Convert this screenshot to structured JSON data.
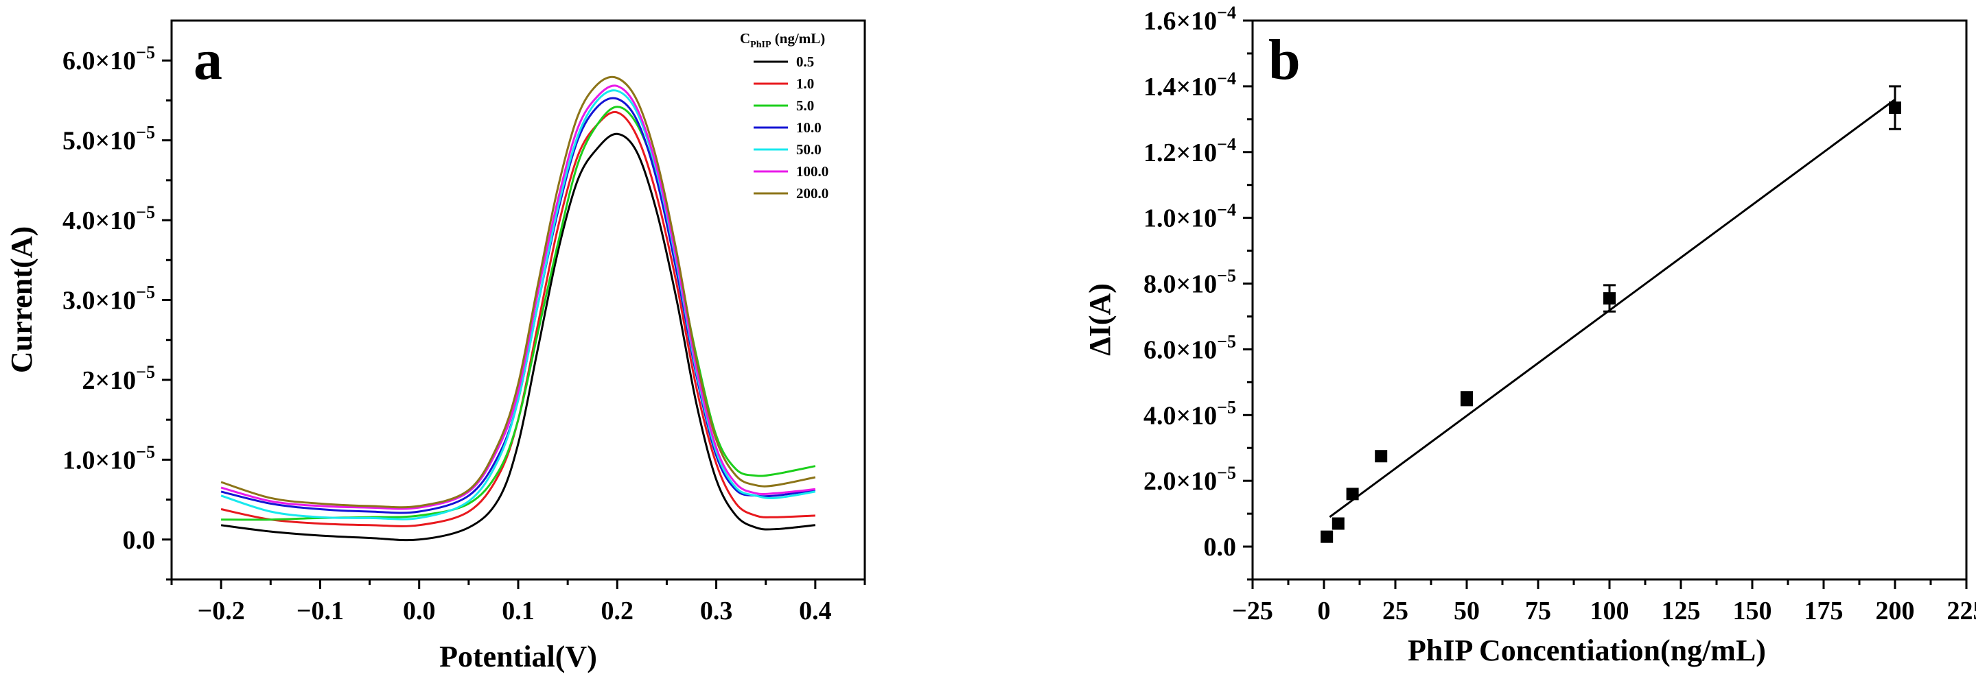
{
  "chart_data": [
    {
      "type": "line",
      "panel_label": "a",
      "xlabel": "Potential(V)",
      "ylabel": "Current(A)",
      "xlim": [
        -0.25,
        0.45
      ],
      "ylim": [
        -5e-06,
        6.5e-05
      ],
      "x_ticks": [
        -0.2,
        -0.1,
        0.0,
        0.1,
        0.2,
        0.3,
        0.4
      ],
      "x_tick_labels": [
        "−0.2",
        "−0.1",
        "0.0",
        "0.1",
        "0.2",
        "0.3",
        "0.4"
      ],
      "y_ticks": [
        0,
        1e-05,
        2e-05,
        3e-05,
        4e-05,
        5e-05,
        6e-05
      ],
      "y_tick_labels": [
        "0.0",
        "1.0×10",
        "2×10",
        "3.0×10",
        "4.0×10",
        "5.0×10",
        "6.0×10"
      ],
      "y_tick_exponents": [
        "",
        "−5",
        "−5",
        "−5",
        "−5",
        "−5",
        "−5"
      ],
      "legend": {
        "title_main": "C",
        "title_sub": "PhIP",
        "title_unit": " (ng/mL)",
        "placement": "top-right"
      },
      "x": [
        -0.2,
        -0.15,
        -0.1,
        -0.05,
        0.0,
        0.05,
        0.08,
        0.1,
        0.12,
        0.14,
        0.16,
        0.18,
        0.2,
        0.22,
        0.24,
        0.26,
        0.28,
        0.3,
        0.32,
        0.34,
        0.36,
        0.4
      ],
      "series": [
        {
          "name": "0.5",
          "color": "#000000",
          "values": [
            1.8e-06,
            1e-06,
            5e-07,
            2e-07,
            0.0,
            1.5e-06,
            5e-06,
            1.2e-05,
            2.4e-05,
            3.6e-05,
            4.5e-05,
            4.9e-05,
            5.08e-05,
            4.85e-05,
            4.1e-05,
            3e-05,
            1.7e-05,
            7.5e-06,
            3e-06,
            1.5e-06,
            1.3e-06,
            1.8e-06
          ]
        },
        {
          "name": "1.0",
          "color": "#e8191e",
          "values": [
            3.8e-06,
            2.5e-06,
            2e-06,
            1.8e-06,
            1.8e-06,
            3.5e-06,
            8e-06,
            1.5e-05,
            2.7e-05,
            3.9e-05,
            4.8e-05,
            5.2e-05,
            5.35e-05,
            5.05e-05,
            4.3e-05,
            3.2e-05,
            1.9e-05,
            9.5e-06,
            4.5e-06,
            3e-06,
            2.8e-06,
            3e-06
          ]
        },
        {
          "name": "5.0",
          "color": "#1ccf1c",
          "values": [
            2.5e-06,
            2.5e-06,
            2.7e-06,
            2.8e-06,
            3e-06,
            4.5e-06,
            8.5e-06,
            1.5e-05,
            2.6e-05,
            3.7e-05,
            4.7e-05,
            5.2e-05,
            5.42e-05,
            5.2e-05,
            4.55e-05,
            3.5e-05,
            2.3e-05,
            1.3e-05,
            8.8e-06,
            8e-06,
            8.2e-06,
            9.2e-06
          ]
        },
        {
          "name": "10.0",
          "color": "#1414d4",
          "values": [
            6e-06,
            4.5e-06,
            3.8e-06,
            3.5e-06,
            3.5e-06,
            5.5e-06,
            1.05e-05,
            1.75e-05,
            2.95e-05,
            4.1e-05,
            5e-05,
            5.42e-05,
            5.52e-05,
            5.25e-05,
            4.5e-05,
            3.35e-05,
            2.05e-05,
            1.05e-05,
            6.2e-06,
            5.5e-06,
            5.5e-06,
            6.2e-06
          ]
        },
        {
          "name": "50.0",
          "color": "#18e8ee",
          "values": [
            5.5e-06,
            3.5e-06,
            2.8e-06,
            2.7e-06,
            2.7e-06,
            4.8e-06,
            1e-05,
            1.75e-05,
            2.95e-05,
            4.15e-05,
            5.05e-05,
            5.5e-05,
            5.62e-05,
            5.35e-05,
            4.6e-05,
            3.45e-05,
            2.1e-05,
            1.1e-05,
            6.5e-06,
            5.5e-06,
            5.2e-06,
            6e-06
          ]
        },
        {
          "name": "100.0",
          "color": "#e81ae8",
          "values": [
            6.5e-06,
            4.8e-06,
            4.2e-06,
            4e-06,
            4e-06,
            6e-06,
            1.15e-05,
            1.85e-05,
            3.1e-05,
            4.25e-05,
            5.15e-05,
            5.55e-05,
            5.68e-05,
            5.4e-05,
            4.65e-05,
            3.5e-05,
            2.15e-05,
            1.15e-05,
            7e-06,
            5.8e-06,
            5.8e-06,
            6.3e-06
          ]
        },
        {
          "name": "200.0",
          "color": "#8c7418",
          "values": [
            7.2e-06,
            5.2e-06,
            4.5e-06,
            4.2e-06,
            4.2e-06,
            6.2e-06,
            1.2e-05,
            1.95e-05,
            3.2e-05,
            4.4e-05,
            5.3e-05,
            5.7e-05,
            5.78e-05,
            5.5e-05,
            4.75e-05,
            3.6e-05,
            2.25e-05,
            1.25e-05,
            8e-06,
            6.8e-06,
            6.8e-06,
            7.8e-06
          ]
        }
      ]
    },
    {
      "type": "scatter",
      "panel_label": "b",
      "xlabel": "PhIP Concentiation(ng/mL)",
      "ylabel": "ΔI(A)",
      "xlim": [
        -25,
        225
      ],
      "ylim": [
        -1e-05,
        0.00016
      ],
      "x_ticks": [
        -25,
        0,
        25,
        50,
        75,
        100,
        125,
        150,
        175,
        200,
        225
      ],
      "x_tick_labels": [
        "−25",
        "0",
        "25",
        "50",
        "75",
        "100",
        "125",
        "150",
        "175",
        "200",
        "225"
      ],
      "y_ticks": [
        0,
        2e-05,
        4e-05,
        6e-05,
        8e-05,
        0.0001,
        0.00012,
        0.00014,
        0.00016
      ],
      "y_tick_labels": [
        "0.0",
        "2.0×10",
        "4.0×10",
        "6.0×10",
        "8.0×10",
        "1.0×10",
        "1.2×10",
        "1.4×10",
        "1.6×10"
      ],
      "y_tick_exponents": [
        "",
        "−5",
        "−5",
        "−5",
        "−5",
        "−4",
        "−4",
        "−4",
        "−4"
      ],
      "points": [
        {
          "x": 1,
          "y": 3e-06,
          "err": 0
        },
        {
          "x": 5,
          "y": 7e-06,
          "err": 0
        },
        {
          "x": 10,
          "y": 1.6e-05,
          "err": 0
        },
        {
          "x": 20,
          "y": 2.75e-05,
          "err": 0
        },
        {
          "x": 50,
          "y": 4.5e-05,
          "err": 2e-06
        },
        {
          "x": 100,
          "y": 7.55e-05,
          "err": 4e-06
        },
        {
          "x": 200,
          "y": 0.0001335,
          "err": 6.5e-06
        }
      ],
      "fit_line": {
        "x": [
          2,
          200
        ],
        "y": [
          9e-06,
          0.000136
        ]
      }
    }
  ]
}
